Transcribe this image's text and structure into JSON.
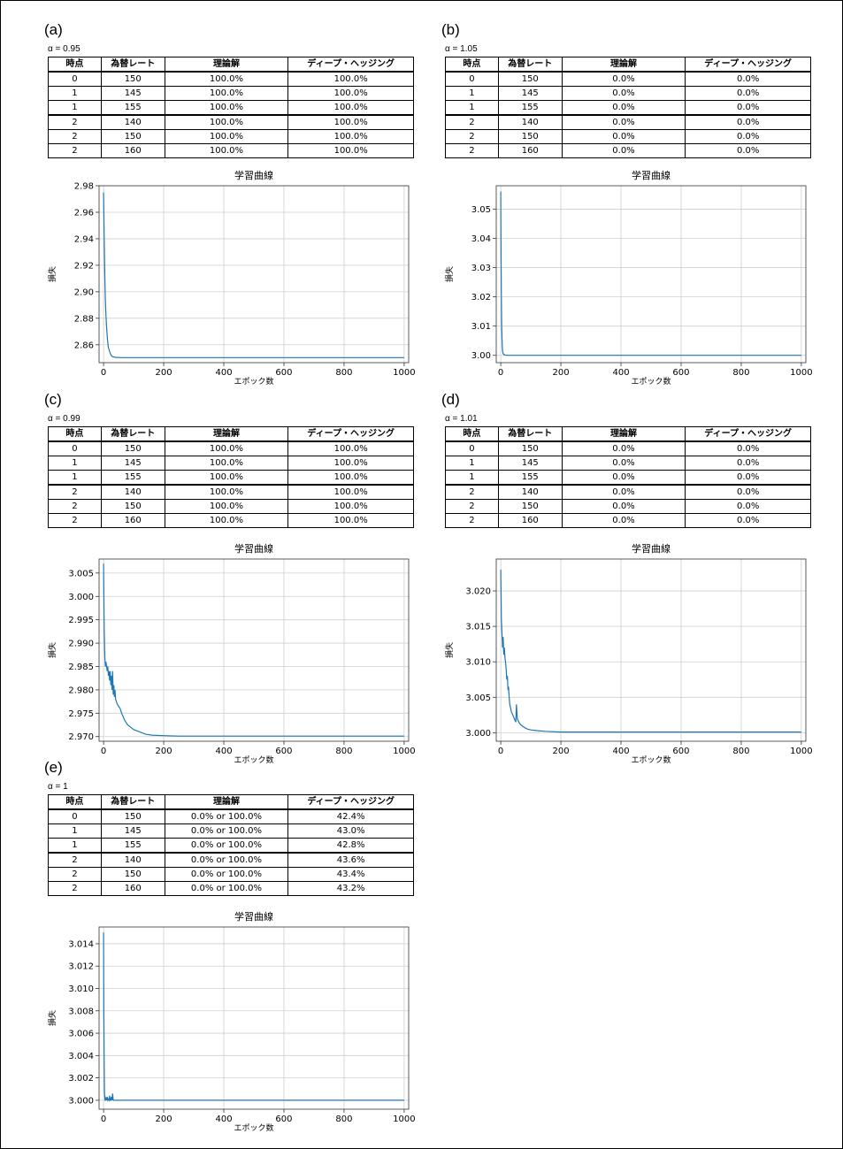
{
  "table_headers": [
    "時点",
    "為替レート",
    "理論解",
    "ディープ・ヘッジング"
  ],
  "chart_title": "学習曲線",
  "xlabel": "エポック数",
  "ylabel": "損失",
  "line_color": "#1f77b4",
  "panels": [
    {
      "label": "(a)",
      "alpha": "α = 0.95",
      "rows": [
        [
          "0",
          "150",
          "100.0%",
          "100.0%"
        ],
        [
          "1",
          "145",
          "100.0%",
          "100.0%"
        ],
        [
          "1",
          "155",
          "100.0%",
          "100.0%"
        ],
        [
          "2",
          "140",
          "100.0%",
          "100.0%"
        ],
        [
          "2",
          "150",
          "100.0%",
          "100.0%"
        ],
        [
          "2",
          "160",
          "100.0%",
          "100.0%"
        ]
      ]
    },
    {
      "label": "(b)",
      "alpha": "α = 1.05",
      "rows": [
        [
          "0",
          "150",
          "0.0%",
          "0.0%"
        ],
        [
          "1",
          "145",
          "0.0%",
          "0.0%"
        ],
        [
          "1",
          "155",
          "0.0%",
          "0.0%"
        ],
        [
          "2",
          "140",
          "0.0%",
          "0.0%"
        ],
        [
          "2",
          "150",
          "0.0%",
          "0.0%"
        ],
        [
          "2",
          "160",
          "0.0%",
          "0.0%"
        ]
      ]
    },
    {
      "label": "(c)",
      "alpha": "α = 0.99",
      "rows": [
        [
          "0",
          "150",
          "100.0%",
          "100.0%"
        ],
        [
          "1",
          "145",
          "100.0%",
          "100.0%"
        ],
        [
          "1",
          "155",
          "100.0%",
          "100.0%"
        ],
        [
          "2",
          "140",
          "100.0%",
          "100.0%"
        ],
        [
          "2",
          "150",
          "100.0%",
          "100.0%"
        ],
        [
          "2",
          "160",
          "100.0%",
          "100.0%"
        ]
      ]
    },
    {
      "label": "(d)",
      "alpha": "α = 1.01",
      "rows": [
        [
          "0",
          "150",
          "0.0%",
          "0.0%"
        ],
        [
          "1",
          "145",
          "0.0%",
          "0.0%"
        ],
        [
          "1",
          "155",
          "0.0%",
          "0.0%"
        ],
        [
          "2",
          "140",
          "0.0%",
          "0.0%"
        ],
        [
          "2",
          "150",
          "0.0%",
          "0.0%"
        ],
        [
          "2",
          "160",
          "0.0%",
          "0.0%"
        ]
      ]
    },
    {
      "label": "(e)",
      "alpha": "α = 1",
      "rows": [
        [
          "0",
          "150",
          "0.0% or 100.0%",
          "42.4%"
        ],
        [
          "1",
          "145",
          "0.0% or 100.0%",
          "43.0%"
        ],
        [
          "1",
          "155",
          "0.0% or 100.0%",
          "42.8%"
        ],
        [
          "2",
          "140",
          "0.0% or 100.0%",
          "43.6%"
        ],
        [
          "2",
          "150",
          "0.0% or 100.0%",
          "43.4%"
        ],
        [
          "2",
          "160",
          "0.0% or 100.0%",
          "43.2%"
        ]
      ]
    }
  ],
  "chart_data": [
    {
      "type": "line",
      "panel": "(a)",
      "title": "学習曲線",
      "xlabel": "エポック数",
      "ylabel": "損失",
      "xlim": [
        -15,
        1015
      ],
      "ylim": [
        2.8465,
        2.98
      ],
      "xticks": [
        0,
        200,
        400,
        600,
        800,
        1000
      ],
      "yticks": [
        2.86,
        2.88,
        2.9,
        2.92,
        2.94,
        2.96,
        2.98
      ],
      "ytick_labels": [
        "2.86",
        "2.88",
        "2.90",
        "2.92",
        "2.94",
        "2.96",
        "2.98"
      ],
      "grid": true,
      "series": [
        {
          "x": [
            0,
            2,
            4,
            6,
            8,
            10,
            13,
            16,
            20,
            25,
            30,
            40,
            60,
            100,
            200,
            400,
            600,
            800,
            1000
          ],
          "y": [
            2.975,
            2.94,
            2.912,
            2.894,
            2.882,
            2.873,
            2.864,
            2.858,
            2.855,
            2.852,
            2.851,
            2.8505,
            2.8503,
            2.8503,
            2.8503,
            2.8503,
            2.8503,
            2.8503,
            2.8503
          ]
        }
      ]
    },
    {
      "type": "line",
      "panel": "(b)",
      "title": "学習曲線",
      "xlabel": "エポック数",
      "ylabel": "損失",
      "xlim": [
        -15,
        1015
      ],
      "ylim": [
        2.9975,
        3.058
      ],
      "xticks": [
        0,
        200,
        400,
        600,
        800,
        1000
      ],
      "yticks": [
        3.0,
        3.01,
        3.02,
        3.03,
        3.04,
        3.05
      ],
      "ytick_labels": [
        "3.00",
        "3.01",
        "3.02",
        "3.03",
        "3.04",
        "3.05"
      ],
      "grid": true,
      "series": [
        {
          "x": [
            0,
            1,
            2,
            3,
            4,
            5,
            6,
            8,
            10,
            15,
            20,
            40,
            100,
            200,
            400,
            600,
            800,
            1000
          ],
          "y": [
            3.056,
            3.035,
            3.02,
            3.011,
            3.006,
            3.003,
            3.0015,
            3.0006,
            3.0003,
            3.0001,
            3.0,
            3.0,
            3.0,
            3.0,
            3.0,
            3.0,
            3.0,
            3.0
          ]
        }
      ]
    },
    {
      "type": "line",
      "panel": "(c)",
      "title": "学習曲線",
      "xlabel": "エポック数",
      "ylabel": "損失",
      "xlim": [
        -15,
        1015
      ],
      "ylim": [
        2.969,
        3.008
      ],
      "xticks": [
        0,
        200,
        400,
        600,
        800,
        1000
      ],
      "yticks": [
        2.97,
        2.975,
        2.98,
        2.985,
        2.99,
        2.995,
        3.0,
        3.005
      ],
      "ytick_labels": [
        "2.970",
        "2.975",
        "2.980",
        "2.985",
        "2.990",
        "2.995",
        "3.000",
        "3.005"
      ],
      "grid": true,
      "series": [
        {
          "x": [
            0,
            2,
            4,
            6,
            8,
            10,
            12,
            14,
            16,
            18,
            20,
            22,
            24,
            26,
            28,
            30,
            32,
            34,
            36,
            38,
            40,
            45,
            50,
            55,
            60,
            70,
            80,
            90,
            100,
            120,
            140,
            160,
            200,
            250,
            300,
            400,
            600,
            800,
            1000
          ],
          "y": [
            3.007,
            2.993,
            2.987,
            2.985,
            2.986,
            2.985,
            2.984,
            2.985,
            2.983,
            2.984,
            2.982,
            2.984,
            2.981,
            2.983,
            2.98,
            2.984,
            2.979,
            2.981,
            2.9785,
            2.98,
            2.978,
            2.977,
            2.9765,
            2.976,
            2.975,
            2.9735,
            2.9725,
            2.972,
            2.9715,
            2.971,
            2.9705,
            2.9703,
            2.9702,
            2.9701,
            2.9701,
            2.9701,
            2.9701,
            2.9701,
            2.9701
          ]
        }
      ]
    },
    {
      "type": "line",
      "panel": "(d)",
      "title": "学習曲線",
      "xlabel": "エポック数",
      "ylabel": "損失",
      "xlim": [
        -15,
        1015
      ],
      "ylim": [
        2.9988,
        3.0245
      ],
      "xticks": [
        0,
        200,
        400,
        600,
        800,
        1000
      ],
      "yticks": [
        3.0,
        3.005,
        3.01,
        3.015,
        3.02
      ],
      "ytick_labels": [
        "3.000",
        "3.005",
        "3.010",
        "3.015",
        "3.020"
      ],
      "grid": true,
      "series": [
        {
          "x": [
            0,
            2,
            4,
            6,
            8,
            10,
            12,
            14,
            16,
            18,
            20,
            22,
            24,
            26,
            28,
            30,
            35,
            40,
            45,
            50,
            52,
            55,
            60,
            65,
            70,
            80,
            90,
            100,
            120,
            150,
            200,
            300,
            400,
            600,
            800,
            1000
          ],
          "y": [
            3.023,
            3.016,
            3.014,
            3.012,
            3.0135,
            3.011,
            3.012,
            3.0105,
            3.01,
            3.009,
            3.0075,
            3.008,
            3.006,
            3.0065,
            3.005,
            3.004,
            3.003,
            3.0025,
            3.002,
            3.0015,
            3.004,
            3.002,
            3.0015,
            3.0012,
            3.001,
            3.0007,
            3.0005,
            3.0004,
            3.0003,
            3.0002,
            3.0001,
            3.0001,
            3.0001,
            3.0001,
            3.0001,
            3.0001
          ]
        }
      ]
    },
    {
      "type": "line",
      "panel": "(e)",
      "title": "学習曲線",
      "xlabel": "エポック数",
      "ylabel": "損失",
      "xlim": [
        -15,
        1015
      ],
      "ylim": [
        2.9992,
        3.0155
      ],
      "xticks": [
        0,
        200,
        400,
        600,
        800,
        1000
      ],
      "yticks": [
        3.0,
        3.002,
        3.004,
        3.006,
        3.008,
        3.01,
        3.012,
        3.014
      ],
      "ytick_labels": [
        "3.000",
        "3.002",
        "3.004",
        "3.006",
        "3.008",
        "3.010",
        "3.012",
        "3.014"
      ],
      "grid": true,
      "series": [
        {
          "x": [
            0,
            1,
            2,
            3,
            4,
            5,
            6,
            8,
            10,
            12,
            14,
            16,
            18,
            20,
            22,
            24,
            26,
            28,
            30,
            32,
            34,
            40,
            60,
            100,
            200,
            400,
            600,
            800,
            1000
          ],
          "y": [
            3.015,
            3.008,
            3.003,
            3.0008,
            3.0002,
            3.0,
            3.0,
            3.0002,
            3.0,
            3.0003,
            3.0,
            3.0001,
            3.0,
            3.0004,
            3.0,
            3.0,
            3.0003,
            3.0,
            3.0006,
            3.0,
            3.0,
            3.0,
            3.0,
            3.0,
            3.0,
            3.0,
            3.0,
            3.0,
            3.0
          ]
        }
      ]
    }
  ]
}
